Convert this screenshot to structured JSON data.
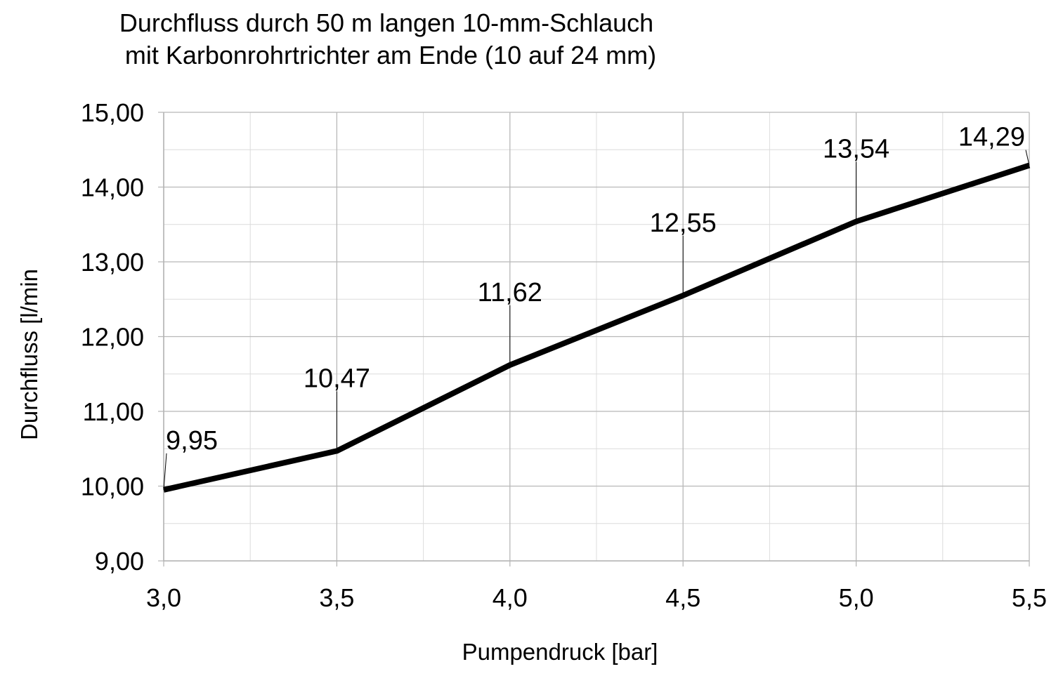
{
  "chart_data": {
    "type": "line",
    "title_lines": [
      "Durchfluss durch 50 m langen 10-mm-Schlauch",
      "mit Karbonrohrtrichter am Ende (10 auf 24 mm)"
    ],
    "xlabel": "Pumpendruck [bar]",
    "ylabel": "Durchfluss [l/min",
    "x_ticks": [
      "3,0",
      "3,5",
      "4,0",
      "4,5",
      "5,0",
      "5,5"
    ],
    "x_tick_values": [
      3.0,
      3.5,
      4.0,
      4.5,
      5.0,
      5.5
    ],
    "y_ticks": [
      "9,00",
      "10,00",
      "11,00",
      "12,00",
      "13,00",
      "14,00",
      "15,00"
    ],
    "y_tick_values": [
      9,
      10,
      11,
      12,
      13,
      14,
      15
    ],
    "xlim": [
      3.0,
      5.5
    ],
    "ylim": [
      9,
      15
    ],
    "grid": true,
    "minor_grid": true,
    "series": [
      {
        "x": [
          3.0,
          3.5,
          4.0,
          4.5,
          5.0,
          5.5
        ],
        "values": [
          9.95,
          10.47,
          11.62,
          12.55,
          13.54,
          14.29
        ],
        "labels": [
          "9,95",
          "10,47",
          "11,62",
          "12,55",
          "13,54",
          "14,29"
        ],
        "color": "#000000"
      }
    ]
  }
}
